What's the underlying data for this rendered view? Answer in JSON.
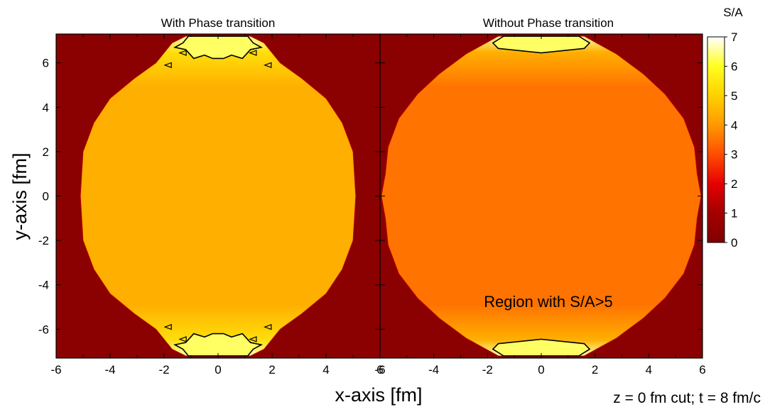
{
  "chart_data": {
    "type": "heatmap",
    "panels": [
      {
        "title": "With Phase transition",
        "xlim": [
          -6,
          6
        ],
        "ylim": [
          -7.3,
          7.3
        ],
        "xticks": [
          -6,
          -4,
          -2,
          0,
          2,
          4,
          6
        ],
        "yticks": [
          -6,
          -4,
          -2,
          0,
          2,
          4,
          6
        ],
        "background_value": 0.3,
        "bulk_value": 4.4,
        "boundary": [
          [
            0,
            7.2
          ],
          [
            1.2,
            7.2
          ],
          [
            1.7,
            6.9
          ],
          [
            2.3,
            6.0
          ],
          [
            3.1,
            5.3
          ],
          [
            4.0,
            4.4
          ],
          [
            4.6,
            3.3
          ],
          [
            5.0,
            2.0
          ],
          [
            5.1,
            0.0
          ],
          [
            5.0,
            -2.0
          ],
          [
            4.6,
            -3.3
          ],
          [
            4.0,
            -4.4
          ],
          [
            3.1,
            -5.3
          ],
          [
            2.3,
            -6.0
          ],
          [
            1.7,
            -6.9
          ],
          [
            1.2,
            -7.2
          ],
          [
            0,
            -7.2
          ]
        ],
        "cap_contour_s_a_5": [
          [
            -1.6,
            6.7
          ],
          [
            -1.3,
            6.9
          ],
          [
            -1.1,
            7.2
          ],
          [
            1.1,
            7.2
          ],
          [
            1.3,
            6.9
          ],
          [
            1.6,
            6.7
          ],
          [
            1.2,
            6.6
          ],
          [
            0.9,
            6.2
          ],
          [
            0.5,
            6.35
          ],
          [
            0.2,
            6.2
          ],
          [
            -0.2,
            6.2
          ],
          [
            -0.5,
            6.35
          ],
          [
            -0.9,
            6.2
          ],
          [
            -1.2,
            6.6
          ]
        ]
      },
      {
        "title": "Without Phase transition",
        "xlim": [
          -6,
          6
        ],
        "ylim": [
          -7.3,
          7.3
        ],
        "xticks": [
          -6,
          -4,
          -2,
          0,
          2,
          4,
          6
        ],
        "yticks": [
          -6,
          -4,
          -2,
          0,
          2,
          4,
          6
        ],
        "background_value": 0.3,
        "bulk_value": 3.5,
        "boundary": [
          [
            0,
            7.2
          ],
          [
            1.6,
            7.2
          ],
          [
            2.8,
            6.4
          ],
          [
            3.8,
            5.5
          ],
          [
            4.6,
            4.6
          ],
          [
            5.3,
            3.5
          ],
          [
            5.7,
            2.2
          ],
          [
            5.8,
            1.0
          ],
          [
            5.95,
            0.0
          ],
          [
            5.8,
            -1.0
          ],
          [
            5.7,
            -2.2
          ],
          [
            5.3,
            -3.5
          ],
          [
            4.6,
            -4.6
          ],
          [
            3.8,
            -5.5
          ],
          [
            2.8,
            -6.4
          ],
          [
            1.6,
            -7.2
          ],
          [
            0,
            -7.2
          ]
        ],
        "cap_contour_s_a_5": [
          [
            -1.8,
            6.9
          ],
          [
            -1.4,
            7.2
          ],
          [
            1.4,
            7.2
          ],
          [
            1.8,
            6.9
          ],
          [
            1.6,
            6.65
          ],
          [
            0.8,
            6.55
          ],
          [
            0,
            6.45
          ],
          [
            -0.8,
            6.55
          ],
          [
            -1.6,
            6.65
          ]
        ]
      }
    ],
    "xlabel": "x-axis [fm]",
    "ylabel": "y-axis [fm]",
    "annotation": "Region with S/A>5",
    "footnote": "z = 0 fm cut; t = 8 fm/c",
    "colorbar": {
      "label": "S/A",
      "range": [
        0,
        7
      ],
      "ticks": [
        0,
        1,
        2,
        3,
        4,
        5,
        6,
        7
      ],
      "colorscale": [
        [
          0,
          "#800000"
        ],
        [
          1,
          "#a30000"
        ],
        [
          2,
          "#e60000"
        ],
        [
          3,
          "#ff4d00"
        ],
        [
          4,
          "#ff9900"
        ],
        [
          5,
          "#ffd000"
        ],
        [
          6,
          "#ffff20"
        ],
        [
          7,
          "#ffffff"
        ]
      ]
    }
  }
}
